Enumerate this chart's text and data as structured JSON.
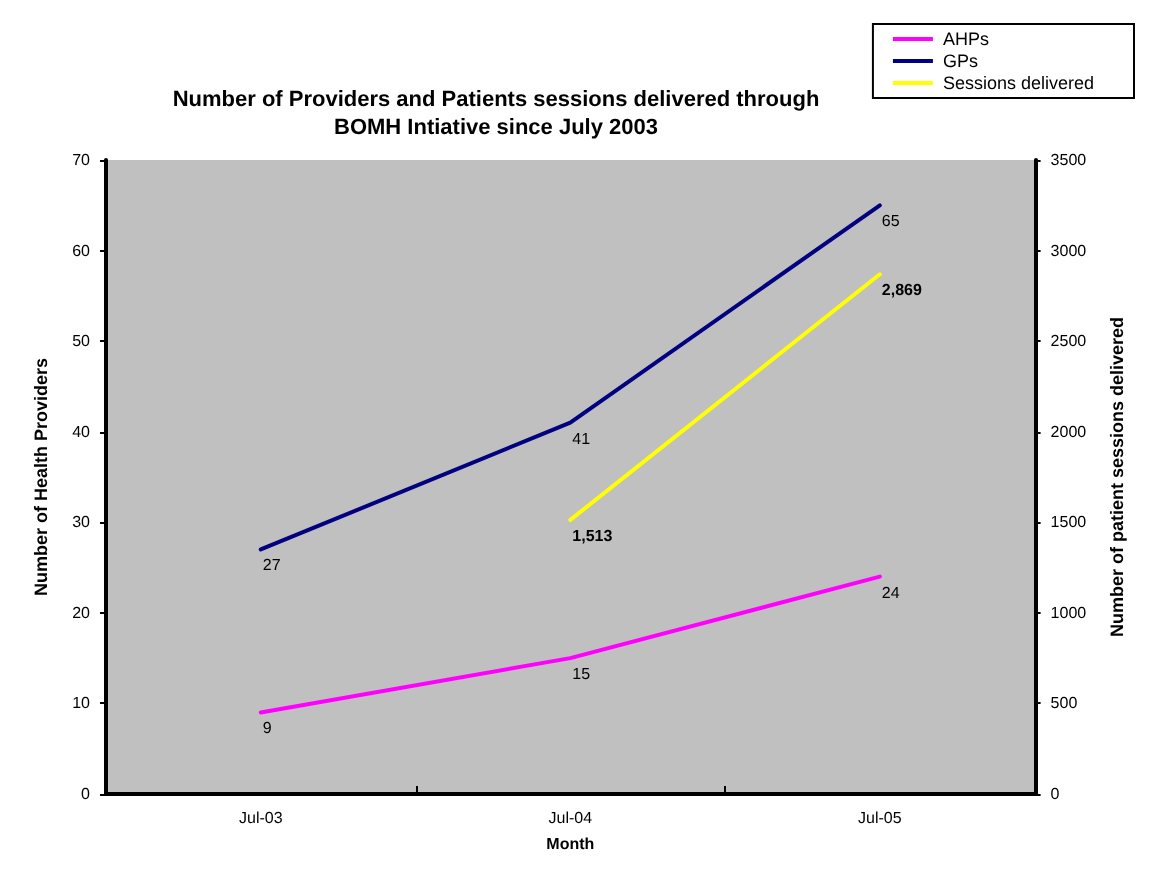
{
  "chart_data": {
    "type": "line",
    "title": "Number of Providers and Patients sessions delivered through\nBOMH Intiative since July 2003",
    "xlabel": "Month",
    "ylabel": "Number of Health Providers",
    "y2label": "Number of patient sessions delivered",
    "categories": [
      "Jul-03",
      "Jul-04",
      "Jul-05"
    ],
    "series": [
      {
        "name": "AHPs",
        "color": "#ff00ff",
        "values": [
          9,
          15,
          24
        ],
        "value_labels": [
          "9",
          "15",
          "24"
        ]
      },
      {
        "name": "GPs",
        "color": "#000080",
        "values": [
          27,
          41,
          65
        ],
        "value_labels": [
          "27",
          "41",
          "65"
        ]
      },
      {
        "name": "Sessions delivered",
        "color": "#ffff00",
        "values": [
          null,
          1513,
          2869
        ],
        "value_labels": [
          null,
          "1,513",
          "2,869"
        ],
        "axis": "y2"
      }
    ],
    "ylim": [
      0,
      70
    ],
    "yticks": [
      0,
      10,
      20,
      30,
      40,
      50,
      60,
      70
    ],
    "y2lim": [
      0,
      3500
    ],
    "y2ticks": [
      0,
      500,
      1000,
      1500,
      2000,
      2500,
      3000,
      3500
    ],
    "grid": false,
    "legend": "top right",
    "marker": "none",
    "line_style": "solid"
  }
}
